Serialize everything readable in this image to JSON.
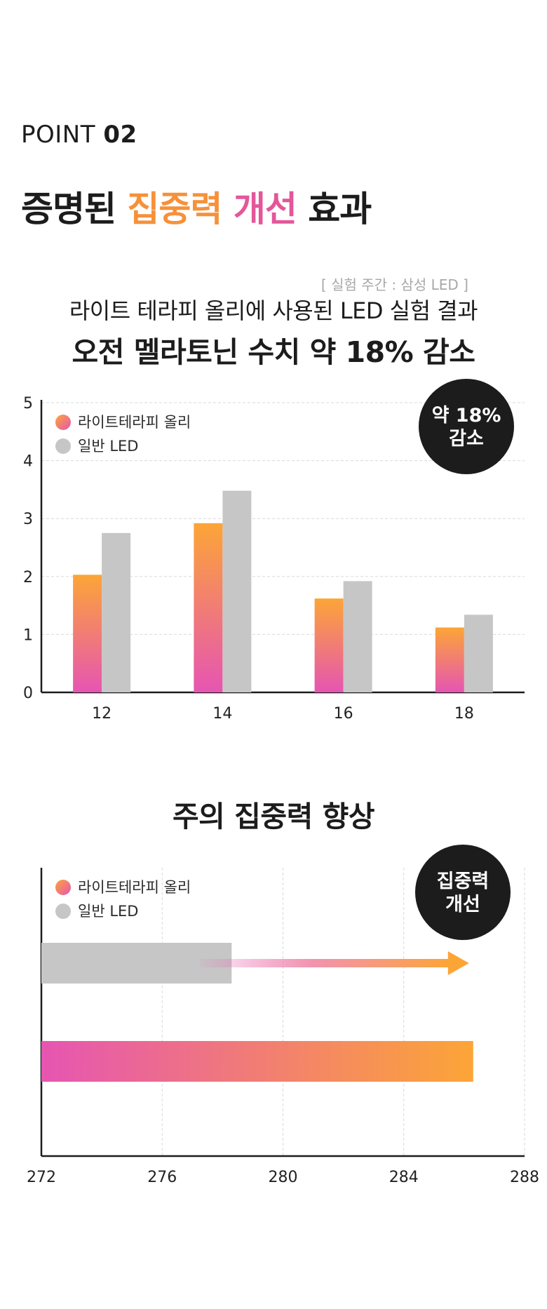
{
  "point": {
    "label": "POINT",
    "number": "02"
  },
  "headline": {
    "part1": "증명된 ",
    "highlight1": "집중력",
    "space": " ",
    "highlight2": "개선",
    "part2": " 효과"
  },
  "test_period": "[ 실험 주간 : 삼성 LED ]",
  "subtitle": "라이트 테라피 올리에 사용된 LED 실험 결과",
  "result": "오전 멜라토닌 수치 약 18% 감소",
  "section2_title": "주의 집중력 향상",
  "colors": {
    "orange": "#fca537",
    "pink": "#e655b2",
    "gray": "#c6c6c6",
    "badge": "#1c1c1c"
  },
  "chart_data": [
    {
      "type": "bar",
      "categories": [
        "12",
        "14",
        "16",
        "18"
      ],
      "series": [
        {
          "name": "라이트테라피 올리",
          "values": [
            2.03,
            2.92,
            1.62,
            1.12
          ]
        },
        {
          "name": "일반 LED",
          "values": [
            2.75,
            3.48,
            1.92,
            1.34
          ]
        }
      ],
      "yticks": [
        "0",
        "1",
        "2",
        "3",
        "4",
        "5"
      ],
      "ylim": [
        0,
        5
      ],
      "grid": true,
      "legend": "top-left",
      "badge": [
        "약 18%",
        "감소"
      ]
    },
    {
      "type": "bar",
      "orientation": "horizontal",
      "series": [
        {
          "name": "일반 LED",
          "value": 278.3
        },
        {
          "name": "라이트테라피 올리",
          "value": 286.3
        }
      ],
      "legend_order": [
        "라이트테라피 올리",
        "일반 LED"
      ],
      "xticks": [
        "272",
        "276",
        "280",
        "284",
        "288"
      ],
      "xlim": [
        272,
        288
      ],
      "grid": true,
      "legend": "top-left",
      "badge": [
        "집중력",
        "개선"
      ]
    }
  ]
}
